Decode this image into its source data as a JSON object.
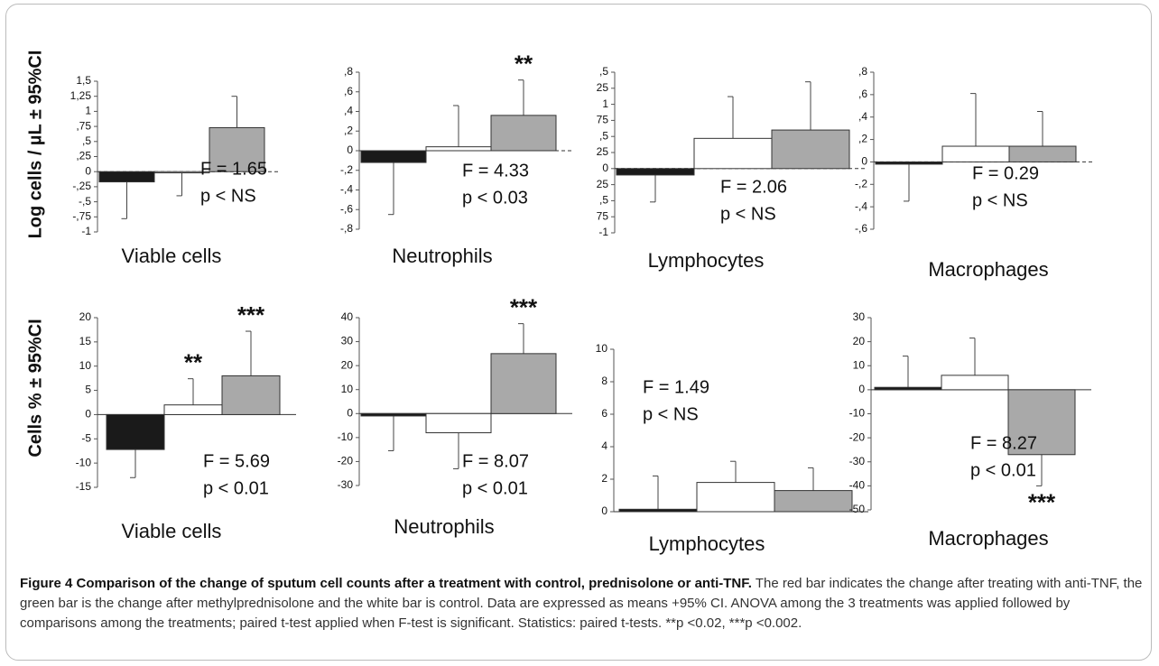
{
  "chart_data": [
    {
      "type": "bar",
      "ylabel": "Log cells / µL ± 95%CI",
      "xlabel": "Viable cells",
      "categories": [
        null,
        null,
        null
      ],
      "values": [
        -0.17,
        -0.02,
        0.73
      ],
      "errors": [
        0.61,
        0.38,
        0.52
      ],
      "colors": [
        "#1a1a1a",
        "#ffffff",
        "#a9a9a9"
      ],
      "ylim": [
        -1,
        1.5
      ],
      "yticks": [
        -1,
        {
          "value": -0.75,
          "label": "-,75"
        },
        {
          "value": -0.5,
          "label": "-,5"
        },
        {
          "value": -0.25,
          "label": "-,25"
        },
        0,
        {
          "value": 0.25,
          "label": ",25"
        },
        {
          "value": 0.5,
          "label": ",5"
        },
        {
          "value": 0.75,
          "label": ",75"
        },
        1,
        {
          "value": 1.25,
          "label": "1,25"
        },
        {
          "value": 1.5,
          "label": "1,5"
        }
      ],
      "zero_line": "dashed",
      "annotations": [
        "F = 1.65",
        "p < NS"
      ],
      "stars": [
        null,
        null,
        null
      ]
    },
    {
      "type": "bar",
      "xlabel": "Neutrophils",
      "categories": [
        null,
        null,
        null
      ],
      "values": [
        -0.12,
        0.04,
        0.36
      ],
      "errors": [
        0.53,
        0.42,
        0.36
      ],
      "colors": [
        "#1a1a1a",
        "#ffffff",
        "#a9a9a9"
      ],
      "ylim": [
        -0.8,
        0.8
      ],
      "yticks": [
        {
          "value": -0.8,
          "label": "-,8"
        },
        {
          "value": -0.6,
          "label": "-,6"
        },
        {
          "value": -0.4,
          "label": "-,4"
        },
        {
          "value": -0.2,
          "label": "-,2"
        },
        0,
        {
          "value": 0.2,
          "label": ",2"
        },
        {
          "value": 0.4,
          "label": ",4"
        },
        {
          "value": 0.6,
          "label": ",6"
        },
        {
          "value": 0.8,
          "label": ",8"
        }
      ],
      "zero_line": "dashed",
      "annotations": [
        "F = 4.33",
        "p < 0.03"
      ],
      "stars": [
        null,
        null,
        "**"
      ]
    },
    {
      "type": "bar",
      "xlabel": "Lymphocytes",
      "categories": [
        null,
        null,
        null
      ],
      "values": [
        -0.1,
        0.47,
        0.6
      ],
      "errors": [
        0.42,
        0.65,
        0.75
      ],
      "colors": [
        "#1a1a1a",
        "#ffffff",
        "#a9a9a9"
      ],
      "ylim": [
        -1,
        1.5
      ],
      "yticks": [
        -1,
        {
          "value": -0.75,
          "label": "75"
        },
        {
          "value": -0.5,
          "label": ",5"
        },
        {
          "value": -0.25,
          "label": "25"
        },
        0,
        {
          "value": 0.25,
          "label": "25"
        },
        {
          "value": 0.5,
          "label": ",5"
        },
        {
          "value": 0.75,
          "label": "75"
        },
        1,
        {
          "value": 1.25,
          "label": "25"
        },
        {
          "value": 1.5,
          "label": ",5"
        }
      ],
      "zero_line": "dashed",
      "annotations": [
        "F = 2.06",
        "p < NS"
      ],
      "stars": [
        null,
        null,
        null
      ]
    },
    {
      "type": "bar",
      "xlabel": "Macrophages",
      "categories": [
        null,
        null,
        null
      ],
      "values": [
        -0.02,
        0.14,
        0.14
      ],
      "errors": [
        0.33,
        0.47,
        0.31
      ],
      "colors": [
        "#1a1a1a",
        "#ffffff",
        "#a9a9a9"
      ],
      "ylim": [
        -0.6,
        0.8
      ],
      "yticks": [
        {
          "value": -0.6,
          "label": "-,6"
        },
        {
          "value": -0.4,
          "label": "-,4"
        },
        {
          "value": -0.2,
          "label": "-,2"
        },
        0,
        {
          "value": 0.2,
          "label": ",2"
        },
        {
          "value": 0.4,
          "label": ",4"
        },
        {
          "value": 0.6,
          "label": ",6"
        },
        {
          "value": 0.8,
          "label": ",8"
        }
      ],
      "zero_line": "dashed",
      "annotations": [
        "F = 0.29",
        "p < NS"
      ],
      "stars": [
        null,
        null,
        null
      ]
    },
    {
      "type": "bar",
      "ylabel": "Cells % ± 95%CI",
      "xlabel": "Viable cells",
      "categories": [
        null,
        null,
        null
      ],
      "values": [
        -7.2,
        2,
        8
      ],
      "errors": [
        5.8,
        5.4,
        9.2
      ],
      "colors": [
        "#1a1a1a",
        "#ffffff",
        "#a9a9a9"
      ],
      "ylim": [
        -15,
        20
      ],
      "yticks": [
        -15,
        -10,
        -5,
        0,
        5,
        10,
        15,
        20
      ],
      "zero_line": "solid",
      "annotations": [
        "F = 5.69",
        "p < 0.01"
      ],
      "stars": [
        null,
        "**",
        "***"
      ]
    },
    {
      "type": "bar",
      "xlabel": "Neutrophils",
      "categories": [
        null,
        null,
        null
      ],
      "values": [
        -1,
        -8,
        25
      ],
      "errors": [
        14.5,
        15,
        12.5
      ],
      "colors": [
        "#1a1a1a",
        "#ffffff",
        "#a9a9a9"
      ],
      "ylim": [
        -30,
        40
      ],
      "yticks": [
        -30,
        -20,
        -10,
        0,
        10,
        20,
        30,
        40
      ],
      "zero_line": "solid",
      "annotations": [
        "F = 8.07",
        "p < 0.01"
      ],
      "stars": [
        null,
        null,
        "***"
      ]
    },
    {
      "type": "bar",
      "xlabel": "Lymphocytes",
      "categories": [
        null,
        null,
        null
      ],
      "values": [
        0.15,
        1.8,
        1.3
      ],
      "errors": [
        2.05,
        1.3,
        1.4
      ],
      "colors": [
        "#1a1a1a",
        "#ffffff",
        "#a9a9a9"
      ],
      "ylim": [
        0,
        10
      ],
      "yticks": [
        0,
        2,
        4,
        6,
        8,
        10
      ],
      "zero_line": "solid",
      "annotations": [
        "F = 1.49",
        "p < NS"
      ],
      "stars": [
        null,
        null,
        null
      ]
    },
    {
      "type": "bar",
      "xlabel": "Macrophages",
      "categories": [
        null,
        null,
        null
      ],
      "values": [
        1,
        6,
        -27
      ],
      "errors": [
        13,
        15.5,
        13
      ],
      "colors": [
        "#1a1a1a",
        "#ffffff",
        "#a9a9a9"
      ],
      "ylim": [
        -50,
        30
      ],
      "yticks": [
        -50,
        -40,
        -30,
        -20,
        -10,
        0,
        10,
        20,
        30
      ],
      "zero_line": "solid",
      "annotations": [
        "F = 8.27",
        "p < 0.01"
      ],
      "stars": [
        null,
        null,
        "***"
      ]
    }
  ],
  "caption": {
    "title": "Figure 4 Comparison of the change of sputum cell counts after a treatment with control, prednisolone or anti-TNF.",
    "text": "The red bar indicates the change after treating with anti-TNF, the green bar is the change after methylprednisolone and the white bar is control. Data are expressed as means +95% CI. ANOVA among the 3 treatments was applied followed by comparisons among the treatments; paired t-test  applied when F-test is significant. Statistics: paired t-tests. **p <0.02, ***p <0.002."
  }
}
